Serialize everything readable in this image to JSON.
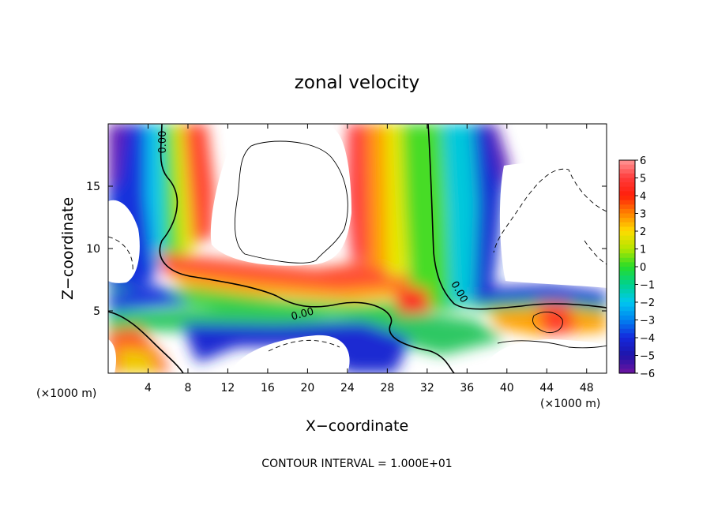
{
  "chart_data": {
    "type": "heatmap",
    "title": "zonal velocity",
    "xlabel": "X−coordinate",
    "ylabel": "Z−coordinate",
    "x_unit_label": "(×1000 m)",
    "y_unit_label": "(×1000 m)",
    "xlim": [
      0,
      50
    ],
    "ylim": [
      0,
      20
    ],
    "x_ticks": [
      4,
      8,
      12,
      16,
      20,
      24,
      28,
      32,
      36,
      40,
      44,
      48
    ],
    "y_ticks": [
      5,
      10,
      15
    ],
    "colorbar": {
      "min": -6,
      "max": 6,
      "ticks": [
        "6",
        "5",
        "4",
        "3",
        "2",
        "1",
        "0",
        "−1",
        "−2",
        "−3",
        "−4",
        "−5",
        "−6"
      ]
    },
    "contour_labels": [
      "0.00",
      "0.00",
      "0.00"
    ],
    "contour_interval_text": "CONTOUR INTERVAL = 1.000E+01",
    "grid": false
  }
}
